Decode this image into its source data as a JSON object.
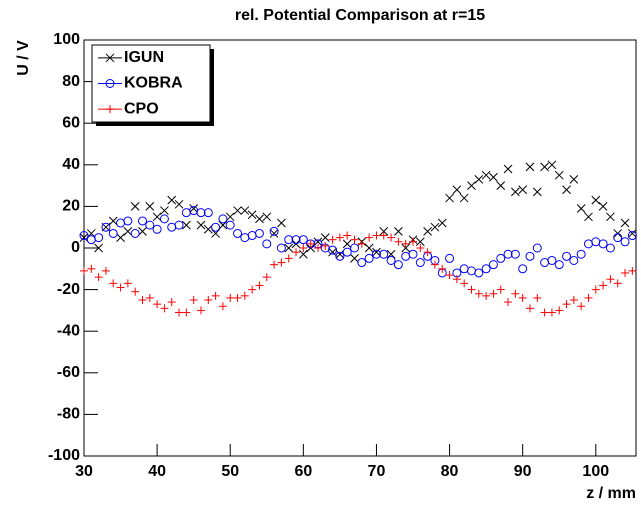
{
  "chart_data": {
    "type": "scatter",
    "title": "rel. Potential Comparison at r=15",
    "x_label": "z / mm",
    "y_label": "U / V",
    "xlim": [
      30,
      105.5
    ],
    "ylim": [
      -100,
      100
    ],
    "xticks": [
      30,
      40,
      50,
      60,
      70,
      80,
      90,
      100
    ],
    "yticks": [
      -100,
      -80,
      -60,
      -40,
      -20,
      0,
      20,
      40,
      60,
      80,
      100
    ],
    "legend": "top-left",
    "x": [
      30,
      31,
      32,
      33,
      34,
      35,
      36,
      37,
      38,
      39,
      40,
      41,
      42,
      43,
      44,
      45,
      46,
      47,
      48,
      49,
      50,
      51,
      52,
      53,
      54,
      55,
      56,
      57,
      58,
      59,
      60,
      61,
      62,
      63,
      64,
      65,
      66,
      67,
      68,
      69,
      70,
      71,
      72,
      73,
      74,
      75,
      76,
      77,
      78,
      79,
      80,
      81,
      82,
      83,
      84,
      85,
      86,
      87,
      88,
      89,
      90,
      91,
      92,
      93,
      94,
      95,
      96,
      97,
      98,
      99,
      100,
      101,
      102,
      103,
      104,
      105
    ],
    "series": [
      {
        "name": "IGUN",
        "color": "#000000",
        "marker": "x",
        "values": [
          5,
          7,
          0,
          10,
          13,
          5,
          8,
          20,
          8,
          20,
          15,
          18,
          23,
          21,
          11,
          19,
          11,
          9,
          7,
          11,
          15,
          18,
          18,
          16,
          14,
          15,
          7,
          12,
          0,
          2,
          -3,
          0,
          3,
          5,
          -2,
          -3,
          2,
          -5,
          3,
          0,
          -2,
          8,
          -3,
          8,
          0,
          4,
          3,
          8,
          10,
          12,
          24,
          28,
          24,
          30,
          33,
          35,
          34,
          30,
          38,
          27,
          28,
          39,
          27,
          39,
          40,
          35,
          28,
          33,
          19,
          15,
          23,
          20,
          15,
          7,
          12,
          7
        ]
      },
      {
        "name": "KOBRA",
        "color": "#0000ff",
        "marker": "circle",
        "values": [
          6,
          4,
          5,
          10,
          7,
          12,
          13,
          7,
          13,
          11,
          9,
          14,
          10,
          11,
          17,
          18,
          17,
          17,
          10,
          14,
          11,
          7,
          5,
          6,
          7,
          2,
          8,
          0,
          4,
          4,
          4,
          2,
          2,
          0,
          -1,
          -4,
          -2,
          0,
          -7,
          -5,
          -3,
          -3,
          -6,
          -8,
          -4,
          -3,
          -7,
          -4,
          -6,
          -12,
          -5,
          -12,
          -10,
          -11,
          -12,
          -10,
          -8,
          -5,
          -3,
          -3,
          -10,
          -4,
          0,
          -7,
          -6,
          -8,
          -4,
          -6,
          -3,
          2,
          3,
          2,
          0,
          5,
          3,
          6
        ]
      },
      {
        "name": "CPO",
        "color": "#ff0000",
        "marker": "plus",
        "values": [
          -11,
          -10,
          -14,
          -11,
          -17,
          -19,
          -17,
          -21,
          -25,
          -24,
          -27,
          -29,
          -26,
          -31,
          -31,
          -25,
          -30,
          -25,
          -23,
          -28,
          -24,
          -24,
          -23,
          -20,
          -18,
          -14,
          -8,
          -7,
          -5,
          -2,
          0,
          2,
          0,
          1,
          4,
          5,
          6,
          4,
          2,
          5,
          6,
          6,
          5,
          3,
          2,
          3,
          0,
          -2,
          -8,
          -10,
          -13,
          -15,
          -17,
          -20,
          -22,
          -23,
          -22,
          -20,
          -26,
          -22,
          -24,
          -29,
          -24,
          -31,
          -31,
          -30,
          -27,
          -25,
          -28,
          -24,
          -20,
          -18,
          -15,
          -17,
          -12,
          -11
        ]
      }
    ]
  }
}
